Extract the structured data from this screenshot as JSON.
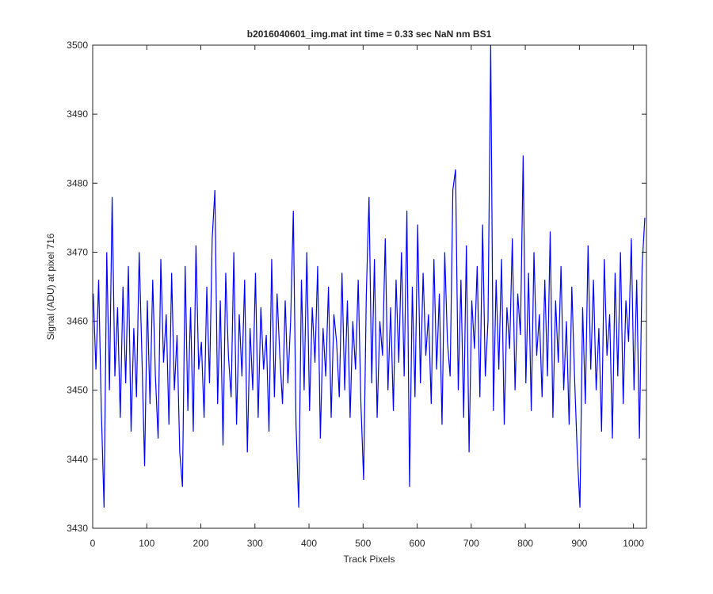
{
  "chart_data": {
    "type": "line",
    "title": "b2016040601_img.mat int time = 0.33 sec  NaN nm BS1",
    "xlabel": "Track Pixels",
    "ylabel": "Signal (ADU) at pixel 716",
    "xlim": [
      0,
      1024
    ],
    "ylim": [
      3430,
      3500
    ],
    "xticks": [
      0,
      100,
      200,
      300,
      400,
      500,
      600,
      700,
      800,
      900,
      1000
    ],
    "yticks": [
      3430,
      3440,
      3450,
      3460,
      3470,
      3480,
      3490,
      3500
    ],
    "grid": false,
    "x": [
      1,
      6,
      11,
      16,
      21,
      26,
      31,
      36,
      41,
      46,
      51,
      56,
      61,
      66,
      71,
      76,
      81,
      86,
      91,
      96,
      101,
      106,
      111,
      116,
      121,
      126,
      131,
      136,
      141,
      146,
      151,
      156,
      161,
      166,
      171,
      176,
      181,
      186,
      191,
      196,
      201,
      206,
      211,
      216,
      221,
      226,
      231,
      236,
      241,
      246,
      251,
      256,
      261,
      266,
      271,
      276,
      281,
      286,
      291,
      296,
      301,
      306,
      311,
      316,
      321,
      326,
      331,
      336,
      341,
      346,
      351,
      356,
      361,
      366,
      371,
      376,
      381,
      386,
      391,
      396,
      401,
      406,
      411,
      416,
      421,
      426,
      431,
      436,
      441,
      446,
      451,
      456,
      461,
      466,
      471,
      476,
      481,
      486,
      491,
      496,
      501,
      506,
      511,
      516,
      521,
      526,
      531,
      536,
      541,
      546,
      551,
      556,
      561,
      566,
      571,
      576,
      581,
      586,
      591,
      596,
      601,
      606,
      611,
      616,
      621,
      626,
      631,
      636,
      641,
      646,
      651,
      656,
      661,
      666,
      671,
      676,
      681,
      686,
      691,
      696,
      701,
      706,
      711,
      716,
      721,
      726,
      731,
      736,
      741,
      746,
      751,
      756,
      761,
      766,
      771,
      776,
      781,
      786,
      791,
      796,
      801,
      806,
      811,
      816,
      821,
      826,
      831,
      836,
      841,
      846,
      851,
      856,
      861,
      866,
      871,
      876,
      881,
      886,
      891,
      896,
      901,
      906,
      911,
      916,
      921,
      926,
      931,
      936,
      941,
      946,
      951,
      956,
      961,
      966,
      971,
      976,
      981,
      986,
      991,
      996,
      1001,
      1006,
      1011,
      1016,
      1021
    ],
    "series": [
      {
        "color": "#0000ff",
        "values": [
          3464,
          3453,
          3466,
          3447,
          3433,
          3470,
          3450,
          3478,
          3452,
          3462,
          3446,
          3465,
          3451,
          3468,
          3444,
          3459,
          3449,
          3470,
          3455,
          3439,
          3463,
          3448,
          3466,
          3452,
          3443,
          3469,
          3454,
          3461,
          3445,
          3467,
          3450,
          3458,
          3441,
          3436,
          3468,
          3447,
          3462,
          3444,
          3471,
          3453,
          3457,
          3446,
          3465,
          3451,
          3472,
          3479,
          3448,
          3463,
          3442,
          3467,
          3455,
          3449,
          3470,
          3445,
          3461,
          3452,
          3466,
          3441,
          3459,
          3450,
          3467,
          3446,
          3462,
          3453,
          3458,
          3444,
          3469,
          3449,
          3464,
          3455,
          3448,
          3463,
          3451,
          3460,
          3476,
          3445,
          3433,
          3466,
          3450,
          3470,
          3447,
          3462,
          3454,
          3468,
          3443,
          3459,
          3452,
          3465,
          3446,
          3461,
          3457,
          3449,
          3467,
          3450,
          3463,
          3446,
          3460,
          3453,
          3466,
          3448,
          3437,
          3464,
          3478,
          3451,
          3469,
          3446,
          3460,
          3455,
          3472,
          3450,
          3462,
          3447,
          3466,
          3454,
          3470,
          3452,
          3476,
          3436,
          3465,
          3449,
          3474,
          3451,
          3467,
          3455,
          3461,
          3448,
          3469,
          3453,
          3464,
          3445,
          3470,
          3457,
          3452,
          3479,
          3482,
          3450,
          3466,
          3446,
          3471,
          3441,
          3463,
          3456,
          3468,
          3449,
          3474,
          3452,
          3460,
          3500,
          3447,
          3466,
          3453,
          3469,
          3445,
          3462,
          3456,
          3472,
          3450,
          3464,
          3458,
          3484,
          3451,
          3467,
          3447,
          3470,
          3455,
          3461,
          3449,
          3466,
          3452,
          3473,
          3446,
          3463,
          3454,
          3468,
          3450,
          3460,
          3445,
          3465,
          3452,
          3441,
          3433,
          3462,
          3448,
          3471,
          3453,
          3466,
          3450,
          3459,
          3444,
          3469,
          3455,
          3461,
          3443,
          3467,
          3452,
          3470,
          3448,
          3463,
          3457,
          3472,
          3450,
          3466,
          3443,
          3468,
          3475
        ]
      }
    ]
  }
}
